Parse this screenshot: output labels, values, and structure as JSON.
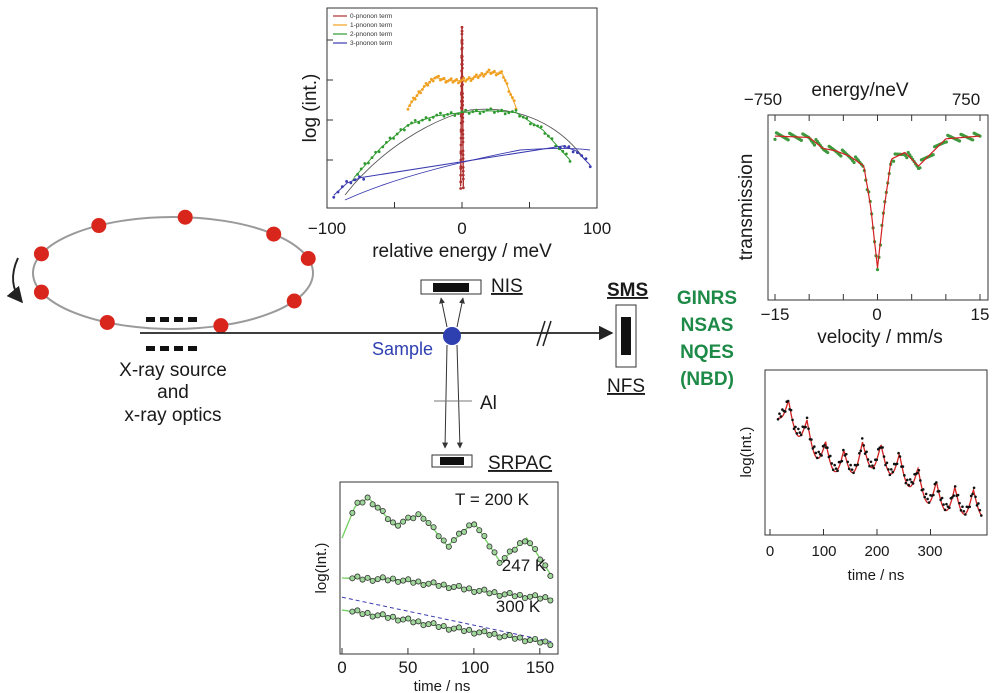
{
  "colors": {
    "orbit_dot": "#d8261c",
    "sample": "#2e3fb0",
    "green_text": "#1e8a47",
    "sample_text": "#2e3fb0",
    "series0": "#b03030",
    "series1": "#f0a020",
    "series2": "#2f9a2f",
    "series3": "#3a3ab0",
    "data_green": "#3c9a3c",
    "data_red": "#d22020"
  },
  "source": {
    "line1": "X-ray source",
    "line2": "and",
    "line3": "x-ray optics"
  },
  "sample_label": "Sample",
  "nis_label": "NIS",
  "sms_label": "SMS",
  "nfs_label": "NFS",
  "al_label": "Al",
  "srpac_label": "SRPAC",
  "techniques": [
    "GINRS",
    "NSAS",
    "NQES",
    "(NBD)"
  ],
  "chart_data": [
    {
      "type": "line",
      "ylabel": "log (int.)",
      "xlabel": "relative energy /  meV",
      "xlim": [
        -100,
        100
      ],
      "x_ticks": [
        "−100",
        "0",
        "100"
      ],
      "legend": [
        "0-pnonon term",
        "1-pnonon term",
        "2-pnonon term",
        "3-pnonon term"
      ],
      "legend_position": "top-left",
      "series": [
        {
          "name": "0-pnonon term",
          "x": [
            -1,
            0,
            1
          ],
          "y": [
            0.1,
            1.0,
            0.1
          ]
        },
        {
          "name": "1-pnonon term",
          "x": [
            -40,
            -30,
            -20,
            -10,
            0,
            10,
            20,
            30,
            40
          ],
          "y": [
            0.55,
            0.65,
            0.72,
            0.7,
            0.7,
            0.72,
            0.75,
            0.74,
            0.55
          ]
        },
        {
          "name": "2-pnonon term",
          "x": [
            -80,
            -60,
            -40,
            -20,
            0,
            20,
            40,
            60,
            80
          ],
          "y": [
            0.15,
            0.32,
            0.45,
            0.5,
            0.52,
            0.53,
            0.52,
            0.42,
            0.25
          ]
        },
        {
          "name": "3-pnonon term",
          "x": [
            -95,
            -85,
            -75,
            75,
            85,
            95
          ],
          "y": [
            0.05,
            0.12,
            0.15,
            0.33,
            0.3,
            0.22
          ]
        }
      ]
    },
    {
      "type": "line",
      "title": "energy/neV",
      "ylabel": "transmission",
      "xlabel": "velocity / mm/s",
      "xlim": [
        -15,
        15
      ],
      "x_ticks": [
        "−15",
        "0",
        "15"
      ],
      "top_ticks": [
        "−750",
        "750"
      ],
      "series": [
        {
          "x": [
            -15,
            -10,
            -8,
            -6,
            -4,
            -2,
            -1,
            0,
            1,
            2,
            4,
            6,
            8,
            10,
            15
          ],
          "y": [
            0.97,
            0.96,
            0.88,
            0.86,
            0.82,
            0.75,
            0.45,
            0.0,
            0.45,
            0.8,
            0.85,
            0.75,
            0.85,
            0.95,
            0.97
          ]
        }
      ]
    },
    {
      "type": "scatter",
      "ylabel": "log(Int.)",
      "xlabel": "time / ns",
      "xlim": [
        0,
        400
      ],
      "x_ticks": [
        "0",
        "100",
        "200",
        "300"
      ],
      "series": [
        {
          "x": [
            20,
            60,
            100,
            140,
            180,
            220,
            260,
            300,
            340,
            380
          ],
          "y": [
            0.95,
            0.8,
            0.62,
            0.55,
            0.62,
            0.58,
            0.48,
            0.35,
            0.3,
            0.28
          ]
        }
      ]
    },
    {
      "type": "scatter",
      "ylabel": "log(Int.)",
      "xlabel": "time / ns",
      "xlim": [
        0,
        160
      ],
      "x_ticks": [
        "0",
        "50",
        "100",
        "150"
      ],
      "annotations": [
        "T = 200 K",
        "247 K",
        "300 K"
      ],
      "series": [
        {
          "name": "T = 200 K",
          "x": [
            0,
            10,
            20,
            40,
            60,
            80,
            100,
            120,
            140,
            160
          ],
          "y": [
            0.7,
            0.9,
            0.95,
            0.78,
            0.85,
            0.65,
            0.8,
            0.55,
            0.7,
            0.45
          ]
        },
        {
          "name": "247 K",
          "x": [
            0,
            40,
            80,
            120,
            160
          ],
          "y": [
            0.45,
            0.44,
            0.4,
            0.35,
            0.32
          ]
        },
        {
          "name": "300 K",
          "x": [
            0,
            40,
            80,
            120,
            160
          ],
          "y": [
            0.25,
            0.2,
            0.14,
            0.09,
            0.04
          ]
        }
      ]
    }
  ]
}
